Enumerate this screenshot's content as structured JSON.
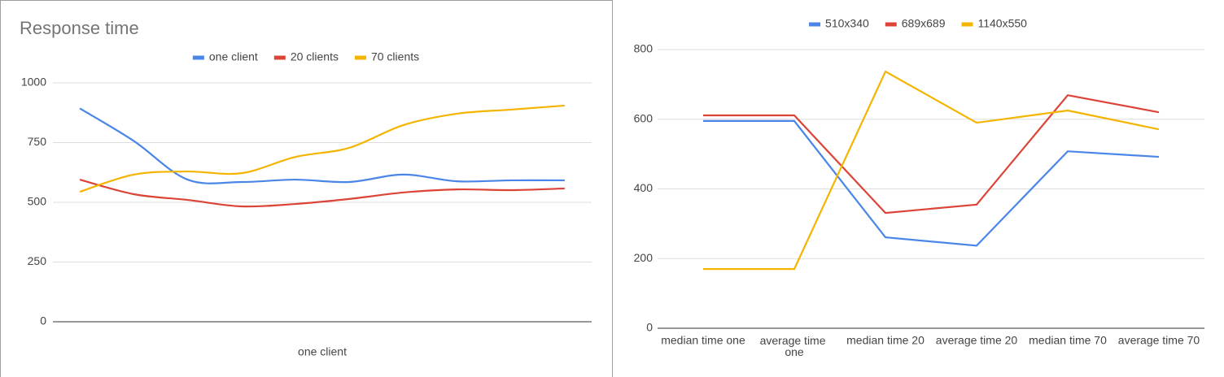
{
  "chart_data": [
    {
      "type": "line",
      "title": "Response time",
      "smooth": true,
      "x_label": "one client",
      "categories": [
        null,
        null,
        null,
        null,
        null,
        null,
        null,
        null,
        null,
        null
      ],
      "series": [
        {
          "name": "one client",
          "color": "#4a86e8",
          "values": [
            893,
            757,
            595,
            585,
            595,
            585,
            616,
            588,
            592,
            592
          ]
        },
        {
          "name": "20 clients",
          "color": "#db4437",
          "values": [
            595,
            534,
            510,
            483,
            493,
            514,
            541,
            554,
            551,
            558
          ]
        },
        {
          "name": "70 clients",
          "color": "#f4b400",
          "values": [
            544,
            616,
            629,
            622,
            690,
            728,
            823,
            871,
            888,
            905
          ]
        }
      ],
      "ylim": [
        0,
        1000
      ],
      "yticks": [
        0,
        250,
        500,
        750,
        1000
      ],
      "grid": true,
      "legend": "top"
    },
    {
      "type": "line",
      "smooth": false,
      "categories": [
        "median time one",
        "average time one",
        "median time 20",
        "average time 20",
        "median time 70",
        "average time 70"
      ],
      "series": [
        {
          "name": "510x340",
          "color": "#4a86e8",
          "values": [
            595,
            595,
            261,
            237,
            508,
            492
          ]
        },
        {
          "name": "689x689",
          "color": "#db4437",
          "values": [
            611,
            611,
            331,
            355,
            669,
            620
          ]
        },
        {
          "name": "1140x550",
          "color": "#f4b400",
          "values": [
            170,
            170,
            737,
            590,
            625,
            571
          ]
        }
      ],
      "ylim": [
        0,
        800
      ],
      "yticks": [
        0,
        200,
        400,
        600,
        800
      ],
      "grid": true,
      "legend": "top"
    }
  ]
}
